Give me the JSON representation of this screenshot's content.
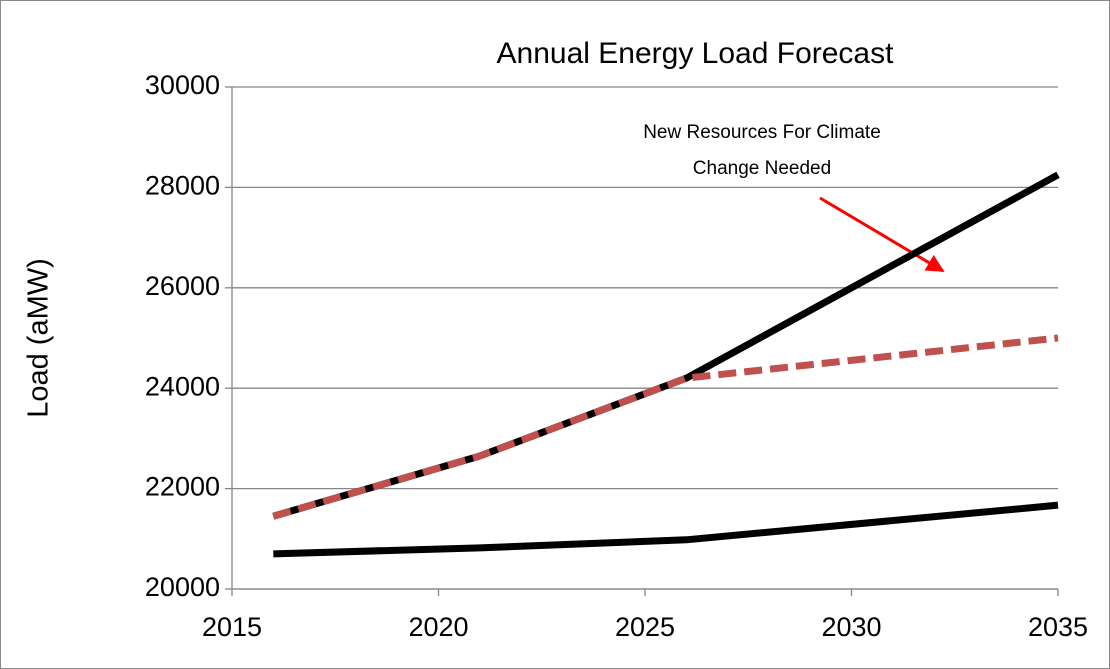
{
  "chart_data": {
    "type": "line",
    "title": "Annual Energy Load Forecast",
    "ylabel": "Load (aMW)",
    "x": [
      2016,
      2021,
      2026,
      2035
    ],
    "series": [
      {
        "color": "#000000",
        "values": [
          21450,
          22650,
          24200,
          28250
        ]
      },
      {
        "color": "#000000",
        "values": [
          20700,
          20820,
          20980,
          21670
        ]
      },
      {
        "color": "#c0504d",
        "dashed": true,
        "values": [
          21450,
          22650,
          24200,
          25000
        ]
      }
    ],
    "xlim": [
      2015,
      2035
    ],
    "xticks": [
      2015,
      2020,
      2025,
      2030,
      2035
    ],
    "ylim": [
      20000,
      30000
    ],
    "yticks": [
      20000,
      22000,
      24000,
      26000,
      28000,
      30000
    ],
    "grid": true,
    "annotation": {
      "lines": [
        "New Resources For Climate",
        "Change Needed"
      ],
      "color": "#ff0000"
    }
  }
}
